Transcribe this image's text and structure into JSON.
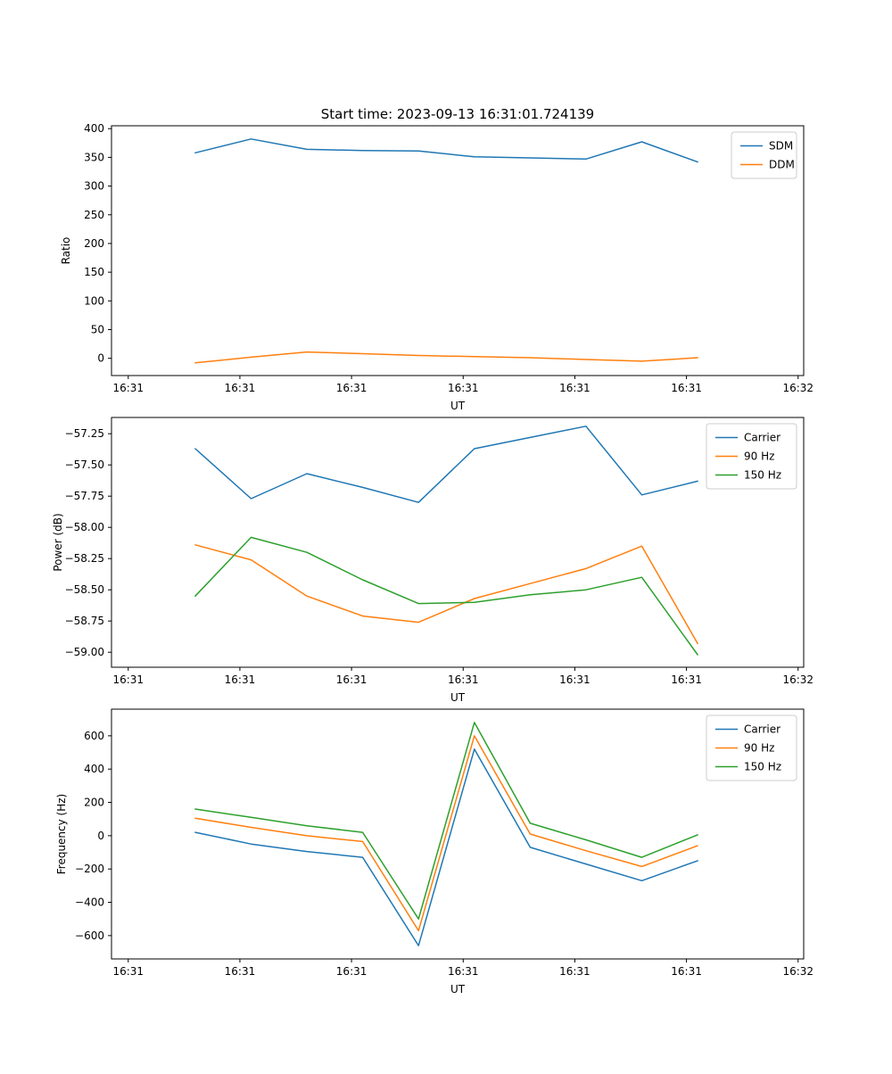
{
  "figure_title": "Start time: 2023-09-13 16:31:01.724139",
  "colors": {
    "blue": "#1f77b4",
    "orange": "#ff7f0e",
    "green": "#2ca02c"
  },
  "chart_data": [
    {
      "type": "line",
      "title": "Start time: 2023-09-13 16:31:01.724139",
      "xlabel": "UT",
      "ylabel": "Ratio",
      "xlim": [
        -1.5,
        60.5
      ],
      "ylim": [
        -30,
        405
      ],
      "xticks": [
        0,
        10,
        20,
        30,
        40,
        50,
        60
      ],
      "xtick_labels": [
        "16:31",
        "16:31",
        "16:31",
        "16:31",
        "16:31",
        "16:31",
        "16:32"
      ],
      "yticks": [
        0,
        50,
        100,
        150,
        200,
        250,
        300,
        350,
        400
      ],
      "ytick_labels": [
        "0",
        "50",
        "100",
        "150",
        "200",
        "250",
        "300",
        "350",
        "400"
      ],
      "x": [
        6,
        11,
        16,
        21,
        26,
        31,
        36,
        41,
        46,
        51
      ],
      "legend_position": "upper right",
      "grid": false,
      "series": [
        {
          "name": "SDM",
          "color": "#1f77b4",
          "values": [
            358,
            382,
            364,
            362,
            361,
            351,
            349,
            347,
            377,
            342
          ]
        },
        {
          "name": "DDM",
          "color": "#ff7f0e",
          "values": [
            -8,
            2,
            11,
            8,
            5,
            3,
            1,
            -2,
            -5,
            1
          ]
        }
      ]
    },
    {
      "type": "line",
      "title": "",
      "xlabel": "UT",
      "ylabel": "Power (dB)",
      "xlim": [
        -1.5,
        60.5
      ],
      "ylim": [
        -59.12,
        -57.12
      ],
      "xticks": [
        0,
        10,
        20,
        30,
        40,
        50,
        60
      ],
      "xtick_labels": [
        "16:31",
        "16:31",
        "16:31",
        "16:31",
        "16:31",
        "16:31",
        "16:32"
      ],
      "yticks": [
        -59.0,
        -58.75,
        -58.5,
        -58.25,
        -58.0,
        -57.75,
        -57.5,
        -57.25
      ],
      "ytick_labels": [
        "−59.00",
        "−58.75",
        "−58.50",
        "−58.25",
        "−58.00",
        "−57.75",
        "−57.50",
        "−57.25"
      ],
      "x": [
        6,
        11,
        16,
        21,
        26,
        31,
        36,
        41,
        46,
        51
      ],
      "legend_position": "upper right",
      "grid": false,
      "series": [
        {
          "name": "Carrier",
          "color": "#1f77b4",
          "values": [
            -57.37,
            -57.77,
            -57.57,
            -57.68,
            -57.8,
            -57.37,
            -57.28,
            -57.19,
            -57.74,
            -57.63
          ]
        },
        {
          "name": "90 Hz",
          "color": "#ff7f0e",
          "values": [
            -58.14,
            -58.26,
            -58.55,
            -58.71,
            -58.76,
            -58.57,
            -58.45,
            -58.33,
            -58.15,
            -58.93
          ]
        },
        {
          "name": "150 Hz",
          "color": "#2ca02c",
          "values": [
            -58.55,
            -58.08,
            -58.2,
            -58.42,
            -58.61,
            -58.6,
            -58.54,
            -58.5,
            -58.4,
            -59.02
          ]
        }
      ]
    },
    {
      "type": "line",
      "title": "",
      "xlabel": "UT",
      "ylabel": "Frequency (Hz)",
      "xlim": [
        -1.5,
        60.5
      ],
      "ylim": [
        -740,
        760
      ],
      "xticks": [
        0,
        10,
        20,
        30,
        40,
        50,
        60
      ],
      "xtick_labels": [
        "16:31",
        "16:31",
        "16:31",
        "16:31",
        "16:31",
        "16:31",
        "16:32"
      ],
      "yticks": [
        -600,
        -400,
        -200,
        0,
        200,
        400,
        600
      ],
      "ytick_labels": [
        "−600",
        "−400",
        "−200",
        "0",
        "200",
        "400",
        "600"
      ],
      "x": [
        6,
        11,
        16,
        21,
        26,
        31,
        36,
        41,
        46,
        51
      ],
      "legend_position": "upper right",
      "grid": false,
      "series": [
        {
          "name": "Carrier",
          "color": "#1f77b4",
          "values": [
            20,
            -50,
            -95,
            -130,
            -660,
            520,
            -70,
            -170,
            -270,
            -150
          ]
        },
        {
          "name": "90 Hz",
          "color": "#ff7f0e",
          "values": [
            105,
            50,
            0,
            -35,
            -570,
            600,
            10,
            -90,
            -185,
            -60
          ]
        },
        {
          "name": "150 Hz",
          "color": "#2ca02c",
          "values": [
            160,
            110,
            60,
            20,
            -500,
            680,
            75,
            -25,
            -130,
            5
          ]
        }
      ]
    }
  ]
}
